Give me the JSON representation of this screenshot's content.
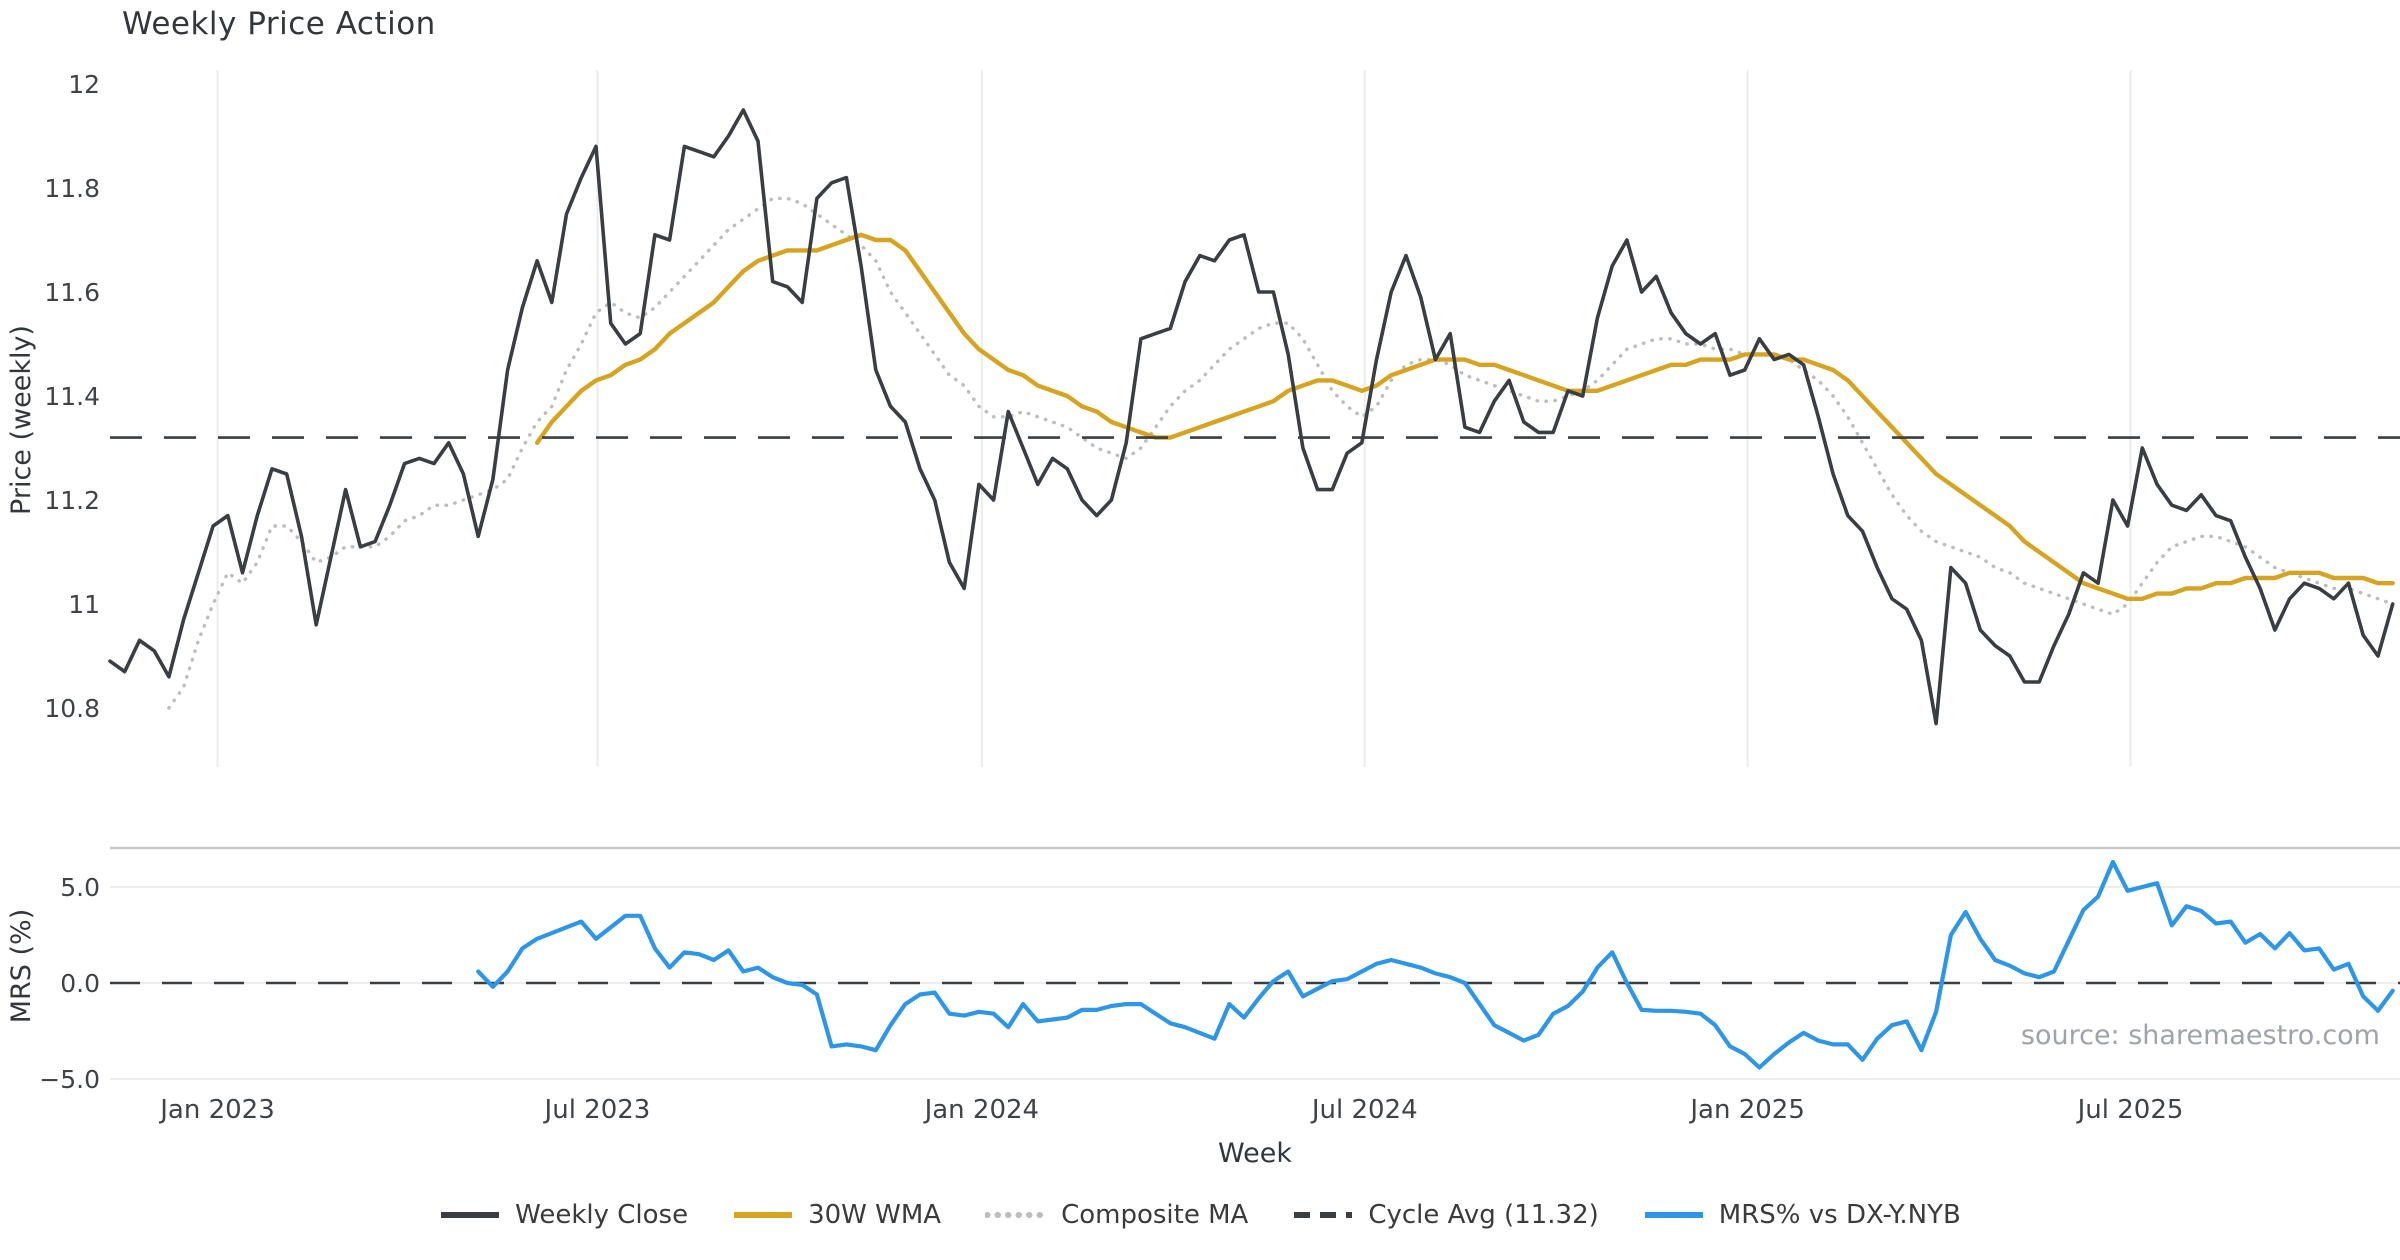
{
  "chart_data": {
    "type": "line",
    "title": "Weekly Price Action",
    "xlabel": "Week",
    "source": "source: sharemaestro.com",
    "x_unit": "week_index",
    "weeks_total": 156,
    "xticks": [
      {
        "label": "Jan 2023",
        "week": 7.3
      },
      {
        "label": "Jul 2023",
        "week": 33.1
      },
      {
        "label": "Jan 2024",
        "week": 59.2
      },
      {
        "label": "Jul 2024",
        "week": 85.2
      },
      {
        "label": "Jan 2025",
        "week": 111.2
      },
      {
        "label": "Jul 2025",
        "week": 137.2
      }
    ],
    "panels": [
      {
        "ylabel": "Price (weekly)",
        "ylim": [
          10.69,
          12.03
        ],
        "yticks": [
          {
            "label": "12",
            "value": 12
          },
          {
            "label": "11.8",
            "value": 11.8
          },
          {
            "label": "11.6",
            "value": 11.6
          },
          {
            "label": "11.4",
            "value": 11.4
          },
          {
            "label": "11.2",
            "value": 11.2
          },
          {
            "label": "11",
            "value": 11
          },
          {
            "label": "10.8",
            "value": 10.8
          }
        ],
        "grid": "vertical-only",
        "series": [
          {
            "name": "Weekly Close",
            "color": "#3a3e42",
            "style": "solid",
            "width": 3.6,
            "start_week": 0,
            "values": [
              10.89,
              10.87,
              10.93,
              10.91,
              10.86,
              10.97,
              11.06,
              11.15,
              11.17,
              11.06,
              11.17,
              11.26,
              11.25,
              11.13,
              10.96,
              11.09,
              11.22,
              11.11,
              11.12,
              11.19,
              11.27,
              11.28,
              11.27,
              11.31,
              11.25,
              11.13,
              11.24,
              11.45,
              11.57,
              11.66,
              11.58,
              11.75,
              11.82,
              11.88,
              11.54,
              11.5,
              11.52,
              11.71,
              11.7,
              11.88,
              11.87,
              11.86,
              11.9,
              11.95,
              11.89,
              11.62,
              11.61,
              11.58,
              11.78,
              11.81,
              11.82,
              11.65,
              11.45,
              11.38,
              11.35,
              11.26,
              11.2,
              11.08,
              11.03,
              11.23,
              11.2,
              11.37,
              11.3,
              11.23,
              11.28,
              11.26,
              11.2,
              11.17,
              11.2,
              11.31,
              11.51,
              11.52,
              11.53,
              11.62,
              11.67,
              11.66,
              11.7,
              11.71,
              11.6,
              11.6,
              11.48,
              11.3,
              11.22,
              11.22,
              11.29,
              11.31,
              11.47,
              11.6,
              11.67,
              11.59,
              11.47,
              11.52,
              11.34,
              11.33,
              11.39,
              11.43,
              11.35,
              11.33,
              11.33,
              11.41,
              11.4,
              11.55,
              11.65,
              11.7,
              11.6,
              11.63,
              11.56,
              11.52,
              11.5,
              11.52,
              11.44,
              11.45,
              11.51,
              11.47,
              11.48,
              11.46,
              11.36,
              11.25,
              11.17,
              11.14,
              11.07,
              11.01,
              10.99,
              10.93,
              10.77,
              11.07,
              11.04,
              10.95,
              10.92,
              10.9,
              10.85,
              10.85,
              10.92,
              10.98,
              11.06,
              11.04,
              11.2,
              11.15,
              11.3,
              11.23,
              11.19,
              11.18,
              11.21,
              11.17,
              11.16,
              11.09,
              11.03,
              10.95,
              11.01,
              11.04,
              11.03,
              11.01,
              11.04,
              10.94,
              10.9,
              11.0
            ]
          },
          {
            "name": "30W WMA",
            "color": "#d7a422",
            "style": "solid",
            "width": 4.4,
            "start_week": 29,
            "values": [
              11.31,
              11.35,
              11.38,
              11.41,
              11.43,
              11.44,
              11.46,
              11.47,
              11.49,
              11.52,
              11.54,
              11.56,
              11.58,
              11.61,
              11.64,
              11.66,
              11.67,
              11.68,
              11.68,
              11.68,
              11.69,
              11.7,
              11.71,
              11.7,
              11.7,
              11.68,
              11.64,
              11.6,
              11.56,
              11.52,
              11.49,
              11.47,
              11.45,
              11.44,
              11.42,
              11.41,
              11.4,
              11.38,
              11.37,
              11.35,
              11.34,
              11.33,
              11.32,
              11.32,
              11.33,
              11.34,
              11.35,
              11.36,
              11.37,
              11.38,
              11.39,
              11.41,
              11.42,
              11.43,
              11.43,
              11.42,
              11.41,
              11.42,
              11.44,
              11.45,
              11.46,
              11.47,
              11.47,
              11.47,
              11.46,
              11.46,
              11.45,
              11.44,
              11.43,
              11.42,
              11.41,
              11.41,
              11.41,
              11.42,
              11.43,
              11.44,
              11.45,
              11.46,
              11.46,
              11.47,
              11.47,
              11.47,
              11.48,
              11.48,
              11.48,
              11.47,
              11.47,
              11.46,
              11.45,
              11.43,
              11.4,
              11.37,
              11.34,
              11.31,
              11.28,
              11.25,
              11.23,
              11.21,
              11.19,
              11.17,
              11.15,
              11.12,
              11.1,
              11.08,
              11.06,
              11.04,
              11.03,
              11.02,
              11.01,
              11.01,
              11.02,
              11.02,
              11.03,
              11.03,
              11.04,
              11.04,
              11.05,
              11.05,
              11.05,
              11.06,
              11.06,
              11.06,
              11.05,
              11.05,
              11.05,
              11.04,
              11.04
            ]
          },
          {
            "name": "Composite MA",
            "color": "#bdbdbd",
            "style": "dotted",
            "width": 3.4,
            "start_week": 4,
            "values": [
              10.8,
              10.84,
              10.93,
              11.0,
              11.06,
              11.04,
              11.08,
              11.15,
              11.15,
              11.12,
              11.08,
              11.09,
              11.11,
              11.11,
              11.11,
              11.13,
              11.16,
              11.17,
              11.19,
              11.19,
              11.2,
              11.21,
              11.22,
              11.24,
              11.3,
              11.35,
              11.38,
              11.45,
              11.5,
              11.56,
              11.58,
              11.56,
              11.55,
              11.57,
              11.6,
              11.63,
              11.66,
              11.69,
              11.72,
              11.74,
              11.76,
              11.78,
              11.78,
              11.77,
              11.75,
              11.73,
              11.71,
              11.69,
              11.66,
              11.6,
              11.56,
              11.52,
              11.48,
              11.44,
              11.42,
              11.38,
              11.36,
              11.36,
              11.37,
              11.36,
              11.35,
              11.34,
              11.32,
              11.3,
              11.29,
              11.28,
              11.3,
              11.34,
              11.38,
              11.41,
              11.43,
              11.46,
              11.49,
              11.51,
              11.53,
              11.54,
              11.54,
              11.51,
              11.46,
              11.41,
              11.38,
              11.36,
              11.38,
              11.43,
              11.46,
              11.47,
              11.47,
              11.46,
              11.44,
              11.43,
              11.42,
              11.41,
              11.4,
              11.39,
              11.39,
              11.4,
              11.41,
              11.43,
              11.46,
              11.49,
              11.5,
              11.51,
              11.51,
              11.5,
              11.5,
              11.49,
              11.49,
              11.48,
              11.48,
              11.48,
              11.47,
              11.45,
              11.43,
              11.4,
              11.36,
              11.31,
              11.26,
              11.21,
              11.17,
              11.14,
              11.12,
              11.11,
              11.1,
              11.09,
              11.07,
              11.06,
              11.04,
              11.03,
              11.02,
              11.01,
              11.0,
              10.99,
              10.98,
              11.0,
              11.04,
              11.08,
              11.11,
              11.12,
              11.13,
              11.13,
              11.12,
              11.11,
              11.09,
              11.07,
              11.06,
              11.05,
              11.04,
              11.03,
              11.03,
              11.02,
              11.01,
              11.0
            ]
          },
          {
            "name": "Cycle Avg (11.32)",
            "color": "#3a3e42",
            "style": "dashed",
            "width": 2.6,
            "constant": 11.32
          }
        ]
      },
      {
        "ylabel": "MRS (%)",
        "ylim": [
          -5.45,
          7.0
        ],
        "yticks": [
          {
            "label": "5.0",
            "value": 5
          },
          {
            "label": "0.0",
            "value": 0
          },
          {
            "label": "−5.0",
            "value": -5
          }
        ],
        "zero_line_dashed": true,
        "series": [
          {
            "name": "MRS% vs DX-Y.NYB",
            "color": "#2e96e8",
            "style": "solid",
            "width": 4.2,
            "start_week": 25,
            "values": [
              0.6,
              -0.2,
              0.6,
              1.8,
              2.3,
              2.6,
              2.9,
              3.2,
              2.3,
              2.9,
              3.5,
              3.5,
              1.8,
              0.8,
              1.6,
              1.5,
              1.2,
              1.7,
              0.6,
              0.8,
              0.3,
              0.0,
              -0.1,
              -0.6,
              -3.3,
              -3.2,
              -3.3,
              -3.5,
              -2.2,
              -1.1,
              -0.6,
              -0.5,
              -1.6,
              -1.7,
              -1.5,
              -1.6,
              -2.3,
              -1.1,
              -2.0,
              -1.9,
              -1.8,
              -1.4,
              -1.4,
              -1.2,
              -1.1,
              -1.1,
              -1.6,
              -2.1,
              -2.3,
              -2.6,
              -2.9,
              -1.1,
              -1.8,
              -0.8,
              0.1,
              0.6,
              -0.7,
              -0.3,
              0.1,
              0.2,
              0.6,
              1.0,
              1.2,
              1.0,
              0.8,
              0.5,
              0.3,
              0.0,
              -1.1,
              -2.2,
              -2.6,
              -3.0,
              -2.7,
              -1.6,
              -1.2,
              -0.45,
              0.8,
              1.6,
              0.0,
              -1.4,
              -1.45,
              -1.45,
              -1.5,
              -1.6,
              -2.2,
              -3.3,
              -3.7,
              -4.4,
              -3.7,
              -3.1,
              -2.6,
              -3.0,
              -3.2,
              -3.2,
              -4.0,
              -2.9,
              -2.2,
              -2.0,
              -3.5,
              -1.5,
              2.5,
              3.7,
              2.3,
              1.2,
              0.9,
              0.5,
              0.3,
              0.6,
              2.2,
              3.8,
              4.5,
              6.3,
              4.8,
              5.0,
              5.2,
              3.0,
              4.0,
              3.75,
              3.1,
              3.2,
              2.1,
              2.55,
              1.8,
              2.6,
              1.7,
              1.8,
              0.7,
              1.0,
              -0.7,
              -1.45,
              -0.4
            ]
          }
        ]
      }
    ],
    "legend": [
      {
        "label": "Weekly Close",
        "color": "#3a3e42",
        "style": "solid"
      },
      {
        "label": "30W WMA",
        "color": "#d7a422",
        "style": "solid"
      },
      {
        "label": "Composite MA",
        "color": "#bdbdbd",
        "style": "dotted"
      },
      {
        "label": "Cycle Avg (11.32)",
        "color": "#3a3e42",
        "style": "dashed"
      },
      {
        "label": "MRS% vs DX-Y.NYB",
        "color": "#2e96e8",
        "style": "solid"
      }
    ],
    "style_hints": {
      "background": "#ffffff",
      "vgrid_color": "#ececec",
      "hgrid_color": "#ededed",
      "panel2_top_spine": "#c9c9c9",
      "tick_text_color": "#3f4347",
      "title_color": "#33373b"
    }
  }
}
